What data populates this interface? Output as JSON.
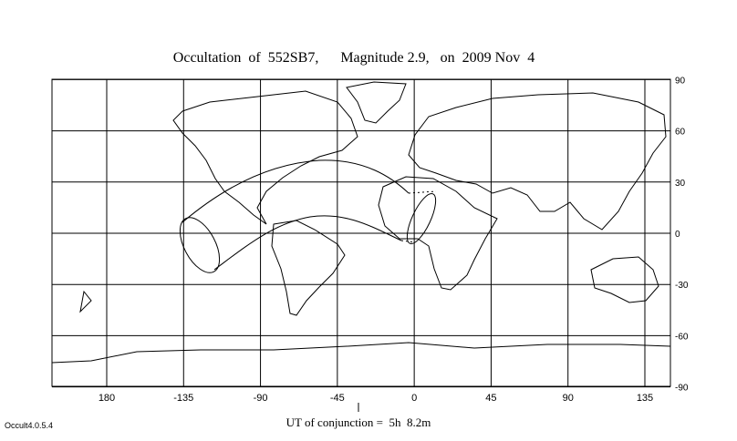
{
  "title": "Occultation  of  552SB7,      Magnitude 2.9,   on  2009 Nov  4",
  "xticks": [
    180,
    -135,
    -90,
    -45,
    0,
    45,
    90,
    135
  ],
  "yticks": [
    90,
    60,
    30,
    0,
    -30,
    -60,
    -90
  ],
  "conjunction_label": "UT of conjunction =  5h  8.2m",
  "version": "Occult4.0.5.4"
}
